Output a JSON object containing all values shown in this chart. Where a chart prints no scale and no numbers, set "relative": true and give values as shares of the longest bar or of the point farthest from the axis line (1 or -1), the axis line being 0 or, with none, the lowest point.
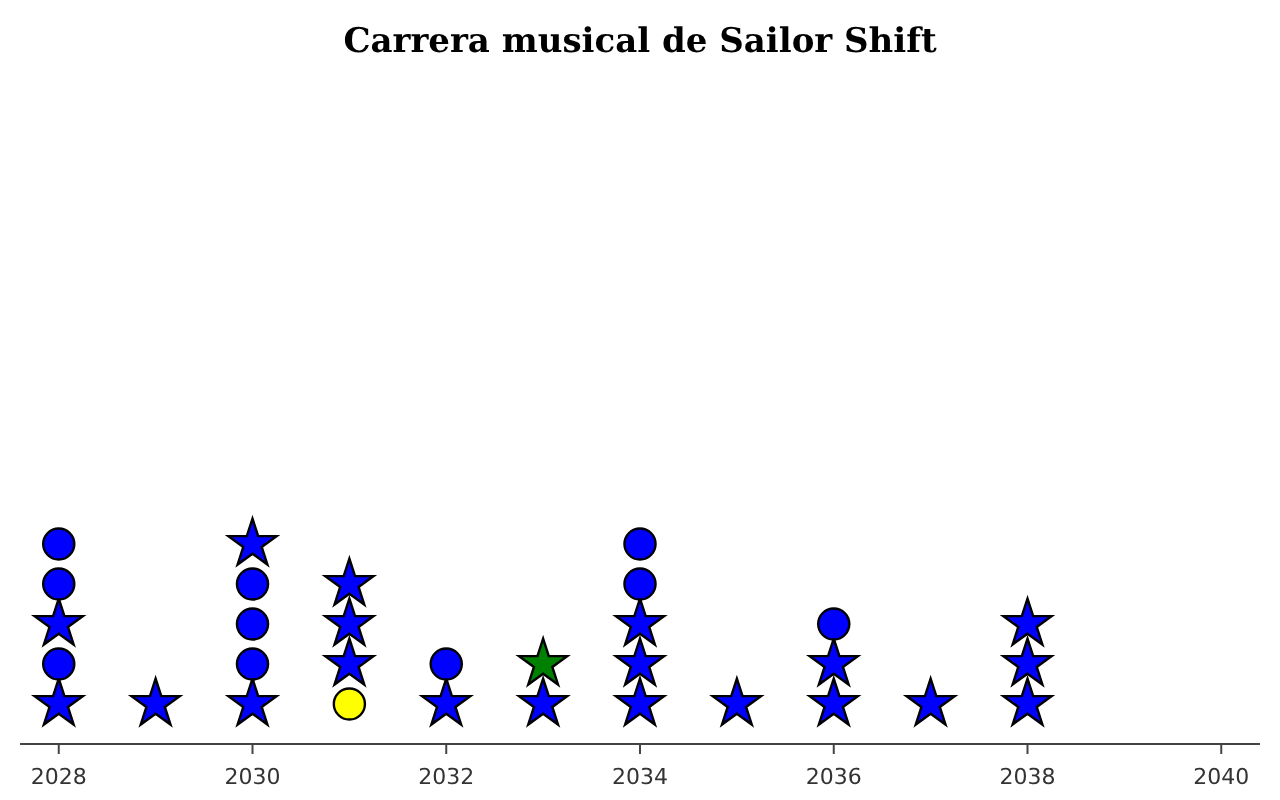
{
  "chart_data": {
    "type": "scatter",
    "title": "Carrera musical de Sailor Shift",
    "relative": true,
    "xlim": [
      2027.6,
      2040.4
    ],
    "xticks": [
      2028,
      2030,
      2032,
      2034,
      2036,
      2038,
      2040
    ],
    "grid": false,
    "series": [
      {
        "marker": "star",
        "color": "#0000ff",
        "x": [
          2028,
          2028,
          2029,
          2030,
          2030,
          2031,
          2031,
          2031,
          2032,
          2033,
          2034,
          2034,
          2034,
          2035,
          2036,
          2036,
          2037,
          2038,
          2038,
          2038
        ],
        "values": [
          0.2,
          0.6,
          0.2,
          0.2,
          1.0,
          0.4,
          0.6,
          0.8,
          0.2,
          0.2,
          0.2,
          0.4,
          0.6,
          0.2,
          0.2,
          0.4,
          0.2,
          0.2,
          0.4,
          0.6
        ]
      },
      {
        "marker": "circle",
        "color": "#0000ff",
        "x": [
          2028,
          2028,
          2028,
          2030,
          2030,
          2030,
          2032,
          2034,
          2034,
          2036
        ],
        "values": [
          0.4,
          0.8,
          1.0,
          0.4,
          0.6,
          0.8,
          0.4,
          0.8,
          1.0,
          0.6
        ]
      },
      {
        "marker": "circle",
        "color": "#ffff00",
        "x": [
          2031
        ],
        "values": [
          0.2
        ]
      },
      {
        "marker": "star",
        "color": "#008000",
        "x": [
          2033
        ],
        "values": [
          0.4
        ]
      }
    ]
  }
}
